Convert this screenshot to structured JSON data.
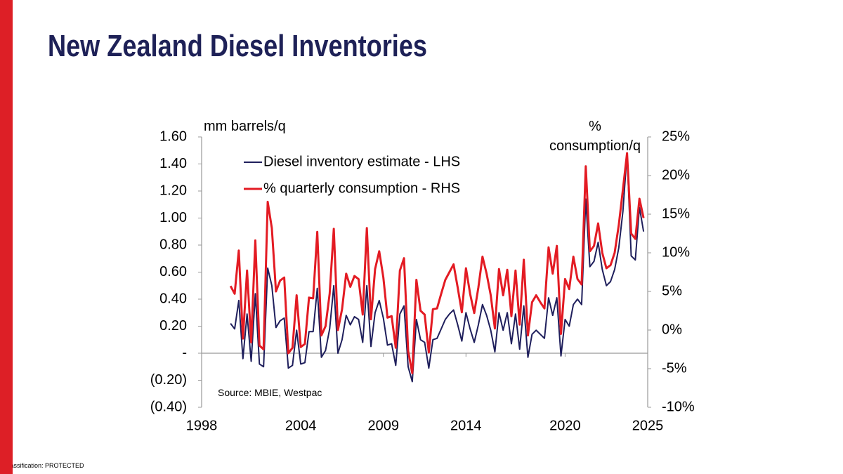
{
  "chart_data": {
    "type": "line",
    "title": "New Zealand Diesel Inventories",
    "footer": "Classification: PROTECTED",
    "source": "Source: MBIE, Westpac",
    "ylabel": "mm barrels/q",
    "y2label": [
      "%",
      "consumption/q"
    ],
    "x": [
      1999.75,
      2000,
      2000.25,
      2000.5,
      2000.75,
      2001,
      2001.25,
      2001.5,
      2001.75,
      2002,
      2002.25,
      2002.5,
      2002.75,
      2003,
      2003.25,
      2003.5,
      2003.75,
      2004,
      2004.25,
      2004.5,
      2004.75,
      2005,
      2005.25,
      2005.5,
      2005.75,
      2006,
      2006.25,
      2006.5,
      2006.75,
      2007,
      2007.25,
      2007.5,
      2007.75,
      2008,
      2008.25,
      2008.5,
      2008.75,
      2009,
      2009.25,
      2009.5,
      2009.75,
      2010,
      2010.25,
      2010.5,
      2010.75,
      2011,
      2011.25,
      2011.5,
      2011.75,
      2012,
      2012.25,
      2012.5,
      2012.75,
      2013,
      2013.25,
      2013.5,
      2013.75,
      2014,
      2014.25,
      2014.5,
      2014.75,
      2015,
      2015.25,
      2015.5,
      2015.75,
      2016,
      2016.25,
      2016.5,
      2016.75,
      2017,
      2017.25,
      2017.5,
      2017.75,
      2018,
      2018.25,
      2018.5,
      2018.75,
      2019,
      2019.25,
      2019.5,
      2019.75,
      2020,
      2020.25,
      2020.5,
      2020.75,
      2021,
      2021.25,
      2021.5,
      2021.75,
      2022,
      2022.25,
      2022.5,
      2022.75,
      2023,
      2023.25,
      2023.5,
      2023.75,
      2024,
      2024.25,
      2024.5,
      2024.75
    ],
    "series": [
      {
        "name": "Diesel inventory estimate - LHS",
        "color": "#1f1f5c",
        "axis": "y",
        "values": [
          0.22,
          0.18,
          0.39,
          -0.04,
          0.29,
          -0.06,
          0.44,
          -0.08,
          -0.1,
          0.63,
          0.5,
          0.19,
          0.24,
          0.26,
          -0.11,
          -0.09,
          0.17,
          -0.08,
          -0.07,
          0.16,
          0.16,
          0.48,
          -0.03,
          0.02,
          0.18,
          0.5,
          0.0,
          0.1,
          0.28,
          0.21,
          0.27,
          0.25,
          0.08,
          0.5,
          0.05,
          0.3,
          0.39,
          0.26,
          0.06,
          0.07,
          -0.09,
          0.29,
          0.35,
          -0.1,
          -0.21,
          0.25,
          0.1,
          0.08,
          -0.11,
          0.1,
          0.11,
          0.18,
          0.25,
          0.29,
          0.32,
          0.21,
          0.09,
          0.3,
          0.18,
          0.08,
          0.21,
          0.36,
          0.28,
          0.17,
          0.01,
          0.3,
          0.17,
          0.3,
          0.07,
          0.29,
          0.03,
          0.35,
          -0.03,
          0.14,
          0.17,
          0.14,
          0.11,
          0.41,
          0.28,
          0.41,
          -0.02,
          0.25,
          0.2,
          0.36,
          0.4,
          0.36,
          1.14,
          0.64,
          0.68,
          0.82,
          0.62,
          0.5,
          0.53,
          0.62,
          0.78,
          1.05,
          1.48,
          0.72,
          0.69,
          1.08,
          0.9
        ]
      },
      {
        "name": "% quarterly consumption - RHS",
        "color": "#e31b23",
        "axis": "y2",
        "values": [
          5.7,
          4.7,
          10.3,
          -1.1,
          7.7,
          -1.6,
          11.6,
          -2,
          -2.5,
          16.6,
          13.2,
          5,
          6.4,
          6.8,
          -3,
          -2.3,
          4.5,
          -2.2,
          -1.8,
          4.2,
          4.1,
          12.7,
          -0.7,
          0.5,
          4.7,
          13.1,
          0,
          2.7,
          7.3,
          5.6,
          7,
          6.6,
          2,
          13.2,
          1.4,
          7.9,
          10.2,
          6.8,
          1.6,
          1.8,
          -2.3,
          7.7,
          9.3,
          -2.7,
          -5.6,
          6.5,
          2.5,
          2,
          -2.9,
          2.7,
          2.8,
          4.7,
          6.5,
          7.5,
          8.5,
          5.5,
          2.3,
          8,
          4.7,
          2.2,
          5.5,
          9.5,
          7.3,
          4.5,
          0.2,
          7.9,
          4.5,
          7.8,
          1.8,
          7.7,
          0.7,
          9.1,
          -0.7,
          3.6,
          4.5,
          3.6,
          2.8,
          10.7,
          7.3,
          10.9,
          -0.5,
          6.6,
          5.3,
          9.5,
          6.6,
          5.9,
          21.2,
          10.2,
          10.9,
          13.8,
          10,
          8,
          8.4,
          10,
          13.6,
          18.2,
          22.9,
          12.5,
          11.8,
          17,
          14.5
        ]
      }
    ],
    "xlim": [
      1998,
      2025
    ],
    "xticks": [
      1998,
      2004,
      2009,
      2014,
      2020,
      2025
    ],
    "ylim": [
      -0.4,
      1.6
    ],
    "yticks": [
      {
        "value": -0.4,
        "label": "(0.40)"
      },
      {
        "value": -0.2,
        "label": "(0.20)"
      },
      {
        "value": 0,
        "label": "-"
      },
      {
        "value": 0.2,
        "label": "0.20"
      },
      {
        "value": 0.4,
        "label": "0.40"
      },
      {
        "value": 0.6,
        "label": "0.60"
      },
      {
        "value": 0.8,
        "label": "0.80"
      },
      {
        "value": 1.0,
        "label": "1.00"
      },
      {
        "value": 1.2,
        "label": "1.20"
      },
      {
        "value": 1.4,
        "label": "1.40"
      },
      {
        "value": 1.6,
        "label": "1.60"
      }
    ],
    "y2lim": [
      -10,
      25
    ],
    "y2ticks": [
      {
        "value": -10,
        "label": "-10%"
      },
      {
        "value": -5,
        "label": "-5%"
      },
      {
        "value": 0,
        "label": "0%"
      },
      {
        "value": 5,
        "label": "5%"
      },
      {
        "value": 10,
        "label": "10%"
      },
      {
        "value": 15,
        "label": "15%"
      },
      {
        "value": 20,
        "label": "20%"
      },
      {
        "value": 25,
        "label": "25%"
      }
    ],
    "legend": "top-left",
    "grid": false
  }
}
